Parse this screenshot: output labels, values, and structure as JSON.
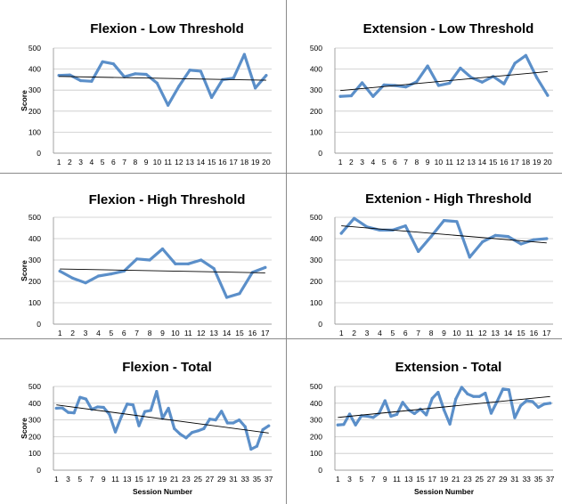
{
  "chart_data": [
    {
      "type": "line",
      "title": "Flexion - Low Threshold",
      "ylabel": "Score",
      "xlabel": "",
      "ylim": [
        0,
        500
      ],
      "yticks": [
        "0",
        "100",
        "200",
        "300",
        "400",
        "500"
      ],
      "xticks": [
        "1",
        "2",
        "3",
        "4",
        "5",
        "6",
        "7",
        "8",
        "9",
        "10",
        "11",
        "12",
        "13",
        "14",
        "15",
        "16",
        "17",
        "18",
        "19",
        "20"
      ],
      "x": [
        1,
        2,
        3,
        4,
        5,
        6,
        7,
        8,
        9,
        10,
        11,
        12,
        13,
        14,
        15,
        16,
        17,
        18,
        19,
        20
      ],
      "series": [
        {
          "values": [
            370,
            372,
            345,
            342,
            435,
            425,
            363,
            378,
            375,
            333,
            228,
            318,
            395,
            390,
            265,
            350,
            357,
            470,
            310,
            370
          ],
          "color": "#5b8fc9"
        }
      ],
      "trendline": {
        "x": [
          1,
          20
        ],
        "y": [
          365,
          347
        ],
        "color": "#000000"
      },
      "grid": "horizontal"
    },
    {
      "type": "line",
      "title": "Extension - Low Threshold",
      "ylabel": "",
      "xlabel": "",
      "ylim": [
        0,
        500
      ],
      "yticks": [
        "0",
        "100",
        "200",
        "300",
        "400",
        "500"
      ],
      "xticks": [
        "1",
        "2",
        "3",
        "4",
        "5",
        "6",
        "7",
        "8",
        "9",
        "10",
        "11",
        "12",
        "13",
        "14",
        "15",
        "16",
        "17",
        "18",
        "19",
        "20"
      ],
      "x": [
        1,
        2,
        3,
        4,
        5,
        6,
        7,
        8,
        9,
        10,
        11,
        12,
        13,
        14,
        15,
        16,
        17,
        18,
        19,
        20
      ],
      "series": [
        {
          "values": [
            270,
            273,
            335,
            270,
            325,
            322,
            315,
            340,
            415,
            322,
            333,
            405,
            360,
            338,
            365,
            330,
            428,
            465,
            360,
            275
          ],
          "color": "#5b8fc9"
        }
      ],
      "trendline": {
        "x": [
          1,
          20
        ],
        "y": [
          298,
          388
        ],
        "color": "#000000"
      },
      "grid": "horizontal"
    },
    {
      "type": "line",
      "title": "Flexion - High Threshold",
      "ylabel": "Score",
      "xlabel": "",
      "ylim": [
        0,
        500
      ],
      "yticks": [
        "0",
        "100",
        "200",
        "300",
        "400",
        "500"
      ],
      "xticks": [
        "1",
        "2",
        "3",
        "4",
        "5",
        "6",
        "7",
        "8",
        "9",
        "10",
        "11",
        "12",
        "13",
        "14",
        "15",
        "16",
        "17"
      ],
      "x": [
        1,
        2,
        3,
        4,
        5,
        6,
        7,
        8,
        9,
        10,
        11,
        12,
        13,
        14,
        15,
        16,
        17
      ],
      "series": [
        {
          "values": [
            248,
            215,
            193,
            225,
            235,
            248,
            305,
            300,
            352,
            282,
            282,
            300,
            260,
            125,
            143,
            242,
            265
          ],
          "color": "#5b8fc9"
        }
      ],
      "trendline": {
        "x": [
          1,
          17
        ],
        "y": [
          258,
          240
        ],
        "color": "#000000"
      },
      "grid": "horizontal"
    },
    {
      "type": "line",
      "title": "Extenion - High Threshold",
      "ylabel": "",
      "xlabel": "",
      "ylim": [
        0,
        500
      ],
      "yticks": [
        "0",
        "100",
        "200",
        "300",
        "400",
        "500"
      ],
      "xticks": [
        "1",
        "2",
        "3",
        "4",
        "5",
        "6",
        "7",
        "8",
        "9",
        "10",
        "11",
        "12",
        "13",
        "14",
        "15",
        "16",
        "17"
      ],
      "x": [
        1,
        2,
        3,
        4,
        5,
        6,
        7,
        8,
        9,
        10,
        11,
        12,
        13,
        14,
        15,
        16,
        17
      ],
      "series": [
        {
          "values": [
            425,
            495,
            455,
            440,
            440,
            460,
            340,
            410,
            485,
            480,
            313,
            385,
            415,
            410,
            375,
            395,
            400
          ],
          "color": "#5b8fc9"
        }
      ],
      "trendline": {
        "x": [
          1,
          17
        ],
        "y": [
          460,
          380
        ],
        "color": "#000000"
      },
      "grid": "horizontal"
    },
    {
      "type": "line",
      "title": "Flexion - Total",
      "ylabel": "Score",
      "xlabel": "Session Number",
      "ylim": [
        0,
        500
      ],
      "yticks": [
        "0",
        "100",
        "200",
        "300",
        "400",
        "500"
      ],
      "xticks": [
        "1",
        "3",
        "5",
        "7",
        "9",
        "11",
        "13",
        "15",
        "17",
        "19",
        "21",
        "23",
        "25",
        "27",
        "29",
        "31",
        "33",
        "35",
        "37"
      ],
      "x": [
        1,
        2,
        3,
        4,
        5,
        6,
        7,
        8,
        9,
        10,
        11,
        12,
        13,
        14,
        15,
        16,
        17,
        18,
        19,
        20,
        21,
        22,
        23,
        24,
        25,
        26,
        27,
        28,
        29,
        30,
        31,
        32,
        33,
        34,
        35,
        36,
        37
      ],
      "series": [
        {
          "values": [
            370,
            372,
            345,
            342,
            435,
            425,
            363,
            378,
            375,
            333,
            228,
            318,
            395,
            390,
            265,
            350,
            357,
            470,
            310,
            370,
            248,
            215,
            193,
            225,
            235,
            248,
            305,
            300,
            352,
            282,
            282,
            300,
            260,
            125,
            143,
            242,
            265
          ],
          "color": "#5b8fc9"
        }
      ],
      "trendline": {
        "x": [
          1,
          37
        ],
        "y": [
          390,
          222
        ],
        "color": "#000000"
      },
      "grid": "horizontal"
    },
    {
      "type": "line",
      "title": "Extension - Total",
      "ylabel": "",
      "xlabel": "Session Number",
      "ylim": [
        0,
        500
      ],
      "yticks": [
        "0",
        "100",
        "200",
        "300",
        "400",
        "500"
      ],
      "xticks": [
        "1",
        "3",
        "5",
        "7",
        "9",
        "11",
        "13",
        "15",
        "17",
        "19",
        "21",
        "23",
        "25",
        "27",
        "29",
        "31",
        "33",
        "35",
        "37"
      ],
      "x": [
        1,
        2,
        3,
        4,
        5,
        6,
        7,
        8,
        9,
        10,
        11,
        12,
        13,
        14,
        15,
        16,
        17,
        18,
        19,
        20,
        21,
        22,
        23,
        24,
        25,
        26,
        27,
        28,
        29,
        30,
        31,
        32,
        33,
        34,
        35,
        36,
        37
      ],
      "series": [
        {
          "values": [
            270,
            273,
            335,
            270,
            325,
            322,
            315,
            340,
            415,
            322,
            333,
            405,
            360,
            338,
            365,
            330,
            428,
            465,
            360,
            275,
            425,
            495,
            455,
            440,
            440,
            460,
            340,
            410,
            485,
            480,
            313,
            385,
            415,
            410,
            375,
            395,
            400
          ],
          "color": "#5b8fc9"
        }
      ],
      "trendline": {
        "x": [
          1,
          37
        ],
        "y": [
          315,
          440
        ],
        "color": "#000000"
      },
      "grid": "horizontal"
    }
  ]
}
